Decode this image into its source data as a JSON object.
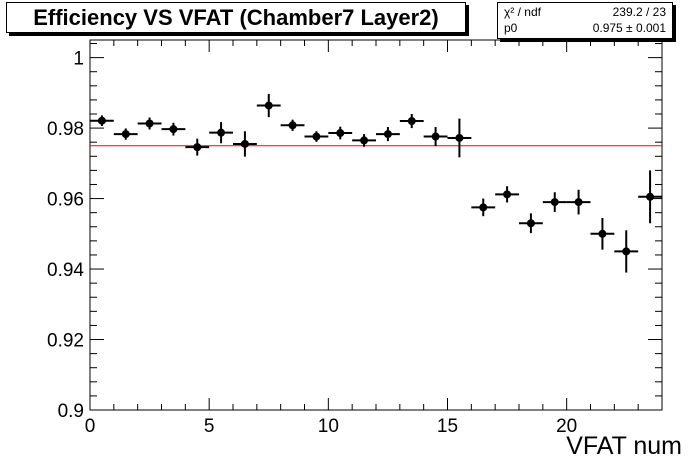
{
  "title": "Efficiency VS VFAT (Chamber7 Layer2)",
  "stats": {
    "rows": [
      {
        "label": "χ² / ndf",
        "value": "239.2 / 23"
      },
      {
        "label": "p0",
        "value": "0.975 ± 0.001"
      }
    ]
  },
  "chart_data": {
    "type": "scatter",
    "title": "Efficiency VS VFAT (Chamber7 Layer2)",
    "xlabel": "VFAT num",
    "ylabel": "",
    "xlim": [
      0,
      24
    ],
    "ylim": [
      0.9,
      1.005
    ],
    "x_ticks": [
      0,
      5,
      10,
      15,
      20
    ],
    "x_tick_labels": [
      "0",
      "5",
      "10",
      "15",
      "20"
    ],
    "y_ticks": [
      0.9,
      0.92,
      0.94,
      0.96,
      0.98,
      1.0
    ],
    "y_tick_labels": [
      "0.9",
      "0.92",
      "0.94",
      "0.96",
      "0.98",
      "1"
    ],
    "grid": false,
    "points": [
      {
        "x": 0.5,
        "y": 0.9821,
        "err": 0.0015
      },
      {
        "x": 1.5,
        "y": 0.9783,
        "err": 0.0016
      },
      {
        "x": 2.5,
        "y": 0.9813,
        "err": 0.0017
      },
      {
        "x": 3.5,
        "y": 0.9797,
        "err": 0.0018
      },
      {
        "x": 4.5,
        "y": 0.9746,
        "err": 0.0024
      },
      {
        "x": 5.5,
        "y": 0.9787,
        "err": 0.003
      },
      {
        "x": 6.5,
        "y": 0.9755,
        "err": 0.0036
      },
      {
        "x": 7.5,
        "y": 0.9864,
        "err": 0.0033
      },
      {
        "x": 8.5,
        "y": 0.9808,
        "err": 0.0016
      },
      {
        "x": 9.5,
        "y": 0.9776,
        "err": 0.0015
      },
      {
        "x": 10.5,
        "y": 0.9786,
        "err": 0.0018
      },
      {
        "x": 11.5,
        "y": 0.9765,
        "err": 0.0018
      },
      {
        "x": 12.5,
        "y": 0.9783,
        "err": 0.002
      },
      {
        "x": 13.5,
        "y": 0.982,
        "err": 0.002
      },
      {
        "x": 14.5,
        "y": 0.9776,
        "err": 0.0027
      },
      {
        "x": 15.5,
        "y": 0.9772,
        "err": 0.0055
      },
      {
        "x": 16.5,
        "y": 0.9575,
        "err": 0.0025
      },
      {
        "x": 17.5,
        "y": 0.9612,
        "err": 0.0023
      },
      {
        "x": 18.5,
        "y": 0.953,
        "err": 0.0028
      },
      {
        "x": 19.5,
        "y": 0.959,
        "err": 0.0028
      },
      {
        "x": 20.5,
        "y": 0.959,
        "err": 0.0035
      },
      {
        "x": 21.5,
        "y": 0.95,
        "err": 0.0045
      },
      {
        "x": 22.5,
        "y": 0.945,
        "err": 0.006
      },
      {
        "x": 23.5,
        "y": 0.9605,
        "err": 0.0075
      }
    ],
    "xerr": 0.5,
    "fit": {
      "value": 0.975,
      "color": "#ff0000"
    },
    "marker_color": "#000000"
  }
}
